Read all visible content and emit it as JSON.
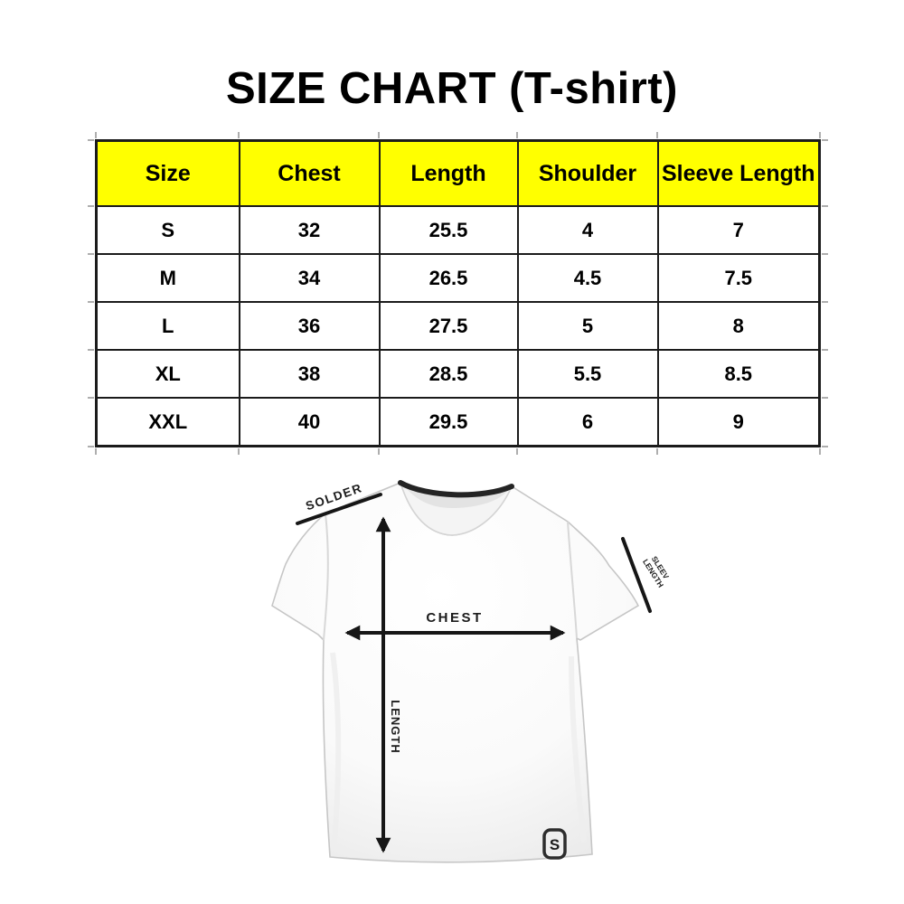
{
  "title": "SIZE CHART (T-shirt)",
  "table": {
    "header_bg": "#ffff00",
    "border_color": "#1b1b1b",
    "columns": [
      "Size",
      "Chest",
      "Length",
      "Shoulder",
      "Sleeve Length"
    ],
    "rows": [
      [
        "S",
        "32",
        "25.5",
        "4",
        "7"
      ],
      [
        "M",
        "34",
        "26.5",
        "4.5",
        "7.5"
      ],
      [
        "L",
        "36",
        "27.5",
        "5",
        "8"
      ],
      [
        "XL",
        "38",
        "28.5",
        "5.5",
        "8.5"
      ],
      [
        "XXL",
        "40",
        "29.5",
        "6",
        "9"
      ]
    ]
  },
  "diagram": {
    "shoulder_label": "SOLDER",
    "chest_label": "CHEST",
    "length_label": "LENGTH",
    "sleeve_label_line1": "SLEEV",
    "sleeve_label_line2": "LENGTH",
    "logo_text": "S",
    "arrow_color": "#161616"
  }
}
